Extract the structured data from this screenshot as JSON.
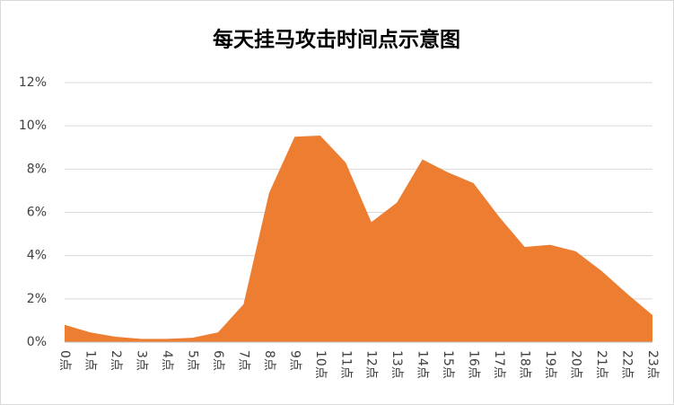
{
  "chart_data": {
    "type": "area",
    "title": "每天挂马攻击时间点示意图",
    "categories": [
      "0点",
      "1点",
      "2点",
      "3点",
      "4点",
      "5点",
      "6点",
      "7点",
      "8点",
      "9点",
      "10点",
      "11点",
      "12点",
      "13点",
      "14点",
      "15点",
      "16点",
      "17点",
      "18点",
      "19点",
      "20点",
      "21点",
      "22点",
      "23点"
    ],
    "values": [
      0.8,
      0.45,
      0.25,
      0.15,
      0.15,
      0.2,
      0.45,
      1.75,
      6.9,
      9.5,
      9.55,
      8.3,
      5.55,
      6.45,
      8.45,
      7.85,
      7.35,
      5.8,
      4.4,
      4.5,
      4.2,
      3.3,
      2.25,
      1.25
    ],
    "color": "#ed7d31",
    "ylim": [
      0,
      12
    ],
    "yticks": [
      {
        "value": 0,
        "label": "0%"
      },
      {
        "value": 2,
        "label": "2%"
      },
      {
        "value": 4,
        "label": "4%"
      },
      {
        "value": 6,
        "label": "6%"
      },
      {
        "value": 8,
        "label": "8%"
      },
      {
        "value": 10,
        "label": "10%"
      },
      {
        "value": 12,
        "label": "12%"
      }
    ],
    "grid": true
  }
}
